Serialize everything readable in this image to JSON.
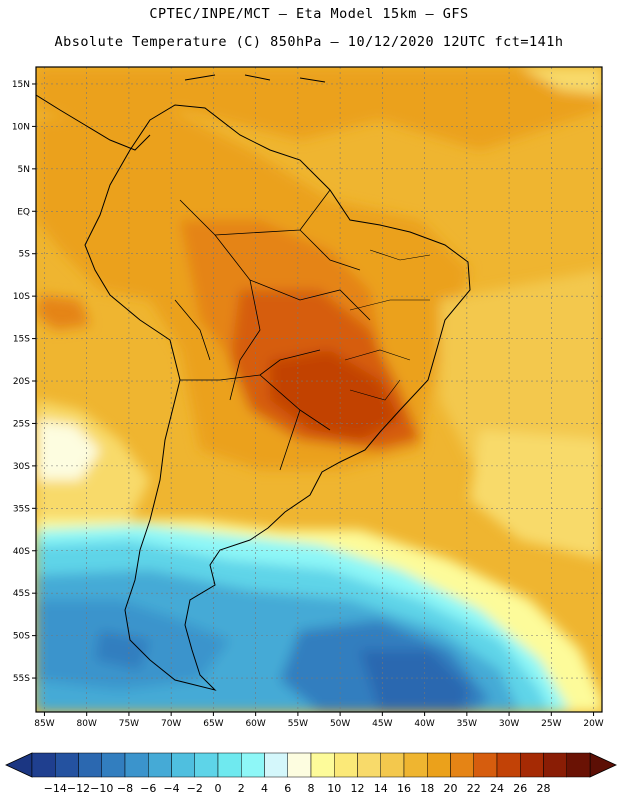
{
  "header": {
    "line1": "CPTEC/INPE/MCT –  Eta Model 15km – GFS",
    "line2": "Absolute Temperature (C) 850hPa – 10/12/2020 12UTC fct=141h"
  },
  "map": {
    "lon_range": [
      -86,
      -19
    ],
    "lat_range": [
      -59,
      17
    ],
    "lat_ticks": [
      {
        "value": 15,
        "label": "15N"
      },
      {
        "value": 10,
        "label": "10N"
      },
      {
        "value": 5,
        "label": "5N"
      },
      {
        "value": 0,
        "label": "EQ"
      },
      {
        "value": -5,
        "label": "5S"
      },
      {
        "value": -10,
        "label": "10S"
      },
      {
        "value": -15,
        "label": "15S"
      },
      {
        "value": -20,
        "label": "20S"
      },
      {
        "value": -25,
        "label": "25S"
      },
      {
        "value": -30,
        "label": "30S"
      },
      {
        "value": -35,
        "label": "35S"
      },
      {
        "value": -40,
        "label": "40S"
      },
      {
        "value": -45,
        "label": "45S"
      },
      {
        "value": -50,
        "label": "50S"
      },
      {
        "value": -55,
        "label": "55S"
      }
    ],
    "lon_ticks": [
      {
        "value": -85,
        "label": "85W"
      },
      {
        "value": -80,
        "label": "80W"
      },
      {
        "value": -75,
        "label": "75W"
      },
      {
        "value": -70,
        "label": "70W"
      },
      {
        "value": -65,
        "label": "65W"
      },
      {
        "value": -60,
        "label": "60W"
      },
      {
        "value": -55,
        "label": "55W"
      },
      {
        "value": -50,
        "label": "50W"
      },
      {
        "value": -45,
        "label": "45W"
      },
      {
        "value": -40,
        "label": "40W"
      },
      {
        "value": -35,
        "label": "35W"
      },
      {
        "value": -30,
        "label": "30W"
      },
      {
        "value": -25,
        "label": "25W"
      },
      {
        "value": -20,
        "label": "20W"
      }
    ]
  },
  "colorbar": {
    "labels": [
      "-14",
      "-12",
      "-10",
      "-8",
      "-6",
      "-4",
      "-2",
      "0",
      "2",
      "4",
      "6",
      "8",
      "10",
      "12",
      "14",
      "16",
      "18",
      "20",
      "22",
      "24",
      "26",
      "28"
    ],
    "colors": [
      "#1f3f8f",
      "#2452a0",
      "#2b68b0",
      "#327ebf",
      "#3b94cc",
      "#45aad6",
      "#4fbfdf",
      "#5ed4e8",
      "#6fe9ef",
      "#8ef7f7",
      "#d4f7fb",
      "#fdfde0",
      "#fdfb9a",
      "#fbe978",
      "#f8da6a",
      "#f3c84d",
      "#efb530",
      "#eba11b",
      "#e58415",
      "#d65d0e",
      "#c24206",
      "#a52a04",
      "#8a1d05",
      "#6a1204"
    ],
    "under_color": "#1b3682",
    "over_color": "#5c0f05"
  }
}
